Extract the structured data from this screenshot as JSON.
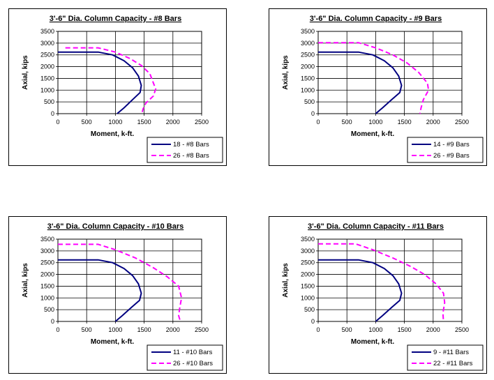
{
  "chart_data": [
    {
      "type": "line",
      "title": "3'-6\" Dia. Column Capacity - #8 Bars",
      "xlabel": "Moment, k-ft.",
      "ylabel": "Axial, kips",
      "xlim": [
        0,
        2500
      ],
      "ylim": [
        0,
        3500
      ],
      "x_ticks": [
        "0",
        "500",
        "1000",
        "1500",
        "2000",
        "2500"
      ],
      "y_ticks": [
        "0",
        "500",
        "1000",
        "1500",
        "2000",
        "2500",
        "3000",
        "3500"
      ],
      "grid": true,
      "legend": "bottom-right",
      "series": [
        {
          "name": "18 - #8 Bars",
          "color": "#000080",
          "dash": "solid",
          "x": [
            0,
            700,
            950,
            1150,
            1300,
            1400,
            1450,
            1430,
            1300,
            1150,
            1030
          ],
          "y": [
            2620,
            2620,
            2500,
            2250,
            1950,
            1600,
            1200,
            900,
            600,
            250,
            0
          ]
        },
        {
          "name": "26 - #8 Bars",
          "color": "#FF00FF",
          "dash": "dashed",
          "x": [
            130,
            700,
            1000,
            1250,
            1450,
            1600,
            1700,
            1660,
            1530,
            1480,
            1460
          ],
          "y": [
            2800,
            2800,
            2620,
            2350,
            2050,
            1700,
            1050,
            750,
            450,
            200,
            0
          ]
        }
      ]
    },
    {
      "type": "line",
      "title": "3'-6\" Dia. Column Capacity - #9 Bars",
      "xlabel": "Moment, k-ft.",
      "ylabel": "Axial, kips",
      "xlim": [
        0,
        2500
      ],
      "ylim": [
        0,
        3500
      ],
      "x_ticks": [
        "0",
        "500",
        "1000",
        "1500",
        "2000",
        "2500"
      ],
      "y_ticks": [
        "0",
        "500",
        "1000",
        "1500",
        "2000",
        "2500",
        "3000",
        "3500"
      ],
      "grid": true,
      "legend": "bottom-right",
      "series": [
        {
          "name": "14 - #9 Bars",
          "color": "#000080",
          "dash": "solid",
          "x": [
            0,
            700,
            950,
            1150,
            1300,
            1400,
            1450,
            1420,
            1280,
            1120,
            1000
          ],
          "y": [
            2620,
            2620,
            2500,
            2250,
            1950,
            1600,
            1200,
            900,
            600,
            250,
            0
          ]
        },
        {
          "name": "26 - #9 Bars",
          "color": "#FF00FF",
          "dash": "dashed",
          "x": [
            0,
            700,
            1000,
            1300,
            1550,
            1750,
            1900,
            1920,
            1830,
            1790,
            1770
          ],
          "y": [
            3020,
            3020,
            2800,
            2500,
            2150,
            1750,
            1300,
            1000,
            600,
            250,
            0
          ]
        }
      ]
    },
    {
      "type": "line",
      "title": "3'-6\" Dia. Column Capacity - #10 Bars",
      "xlabel": "Moment, k-ft.",
      "ylabel": "Axial, kips",
      "xlim": [
        0,
        2500
      ],
      "ylim": [
        0,
        3500
      ],
      "x_ticks": [
        "0",
        "500",
        "1000",
        "1500",
        "2000",
        "2500"
      ],
      "y_ticks": [
        "0",
        "500",
        "1000",
        "1500",
        "2000",
        "2500",
        "3000",
        "3500"
      ],
      "grid": true,
      "legend": "bottom-right",
      "series": [
        {
          "name": "11 - #10 Bars",
          "color": "#000080",
          "dash": "solid",
          "x": [
            0,
            700,
            950,
            1150,
            1300,
            1400,
            1450,
            1420,
            1280,
            1120,
            1000
          ],
          "y": [
            2620,
            2620,
            2500,
            2250,
            1950,
            1600,
            1200,
            900,
            600,
            250,
            0
          ]
        },
        {
          "name": "26 - #10 Bars",
          "color": "#FF00FF",
          "dash": "dashed",
          "x": [
            0,
            700,
            1000,
            1350,
            1650,
            1900,
            2100,
            2150,
            2120,
            2100,
            2130
          ],
          "y": [
            3280,
            3280,
            3050,
            2700,
            2300,
            1900,
            1500,
            1000,
            600,
            250,
            0
          ]
        }
      ]
    },
    {
      "type": "line",
      "title": "3'-6\" Dia. Column Capacity - #11 Bars",
      "xlabel": "Moment, k-ft.",
      "ylabel": "Axial, kips",
      "xlim": [
        0,
        2500
      ],
      "ylim": [
        0,
        3500
      ],
      "x_ticks": [
        "0",
        "500",
        "1000",
        "1500",
        "2000",
        "2500"
      ],
      "y_ticks": [
        "0",
        "500",
        "1000",
        "1500",
        "2000",
        "2500",
        "3000",
        "3500"
      ],
      "grid": true,
      "legend": "bottom-right",
      "series": [
        {
          "name": "9 - #11 Bars",
          "color": "#000080",
          "dash": "solid",
          "x": [
            0,
            700,
            950,
            1150,
            1300,
            1400,
            1450,
            1420,
            1280,
            1120,
            1000
          ],
          "y": [
            2620,
            2620,
            2500,
            2250,
            1950,
            1600,
            1200,
            900,
            600,
            250,
            0
          ]
        },
        {
          "name": "22 - #11 Bars",
          "color": "#FF00FF",
          "dash": "dashed",
          "x": [
            0,
            650,
            950,
            1300,
            1600,
            1850,
            2050,
            2180,
            2200,
            2170,
            2180
          ],
          "y": [
            3300,
            3300,
            3050,
            2700,
            2350,
            2000,
            1600,
            1200,
            800,
            350,
            0
          ]
        }
      ]
    }
  ]
}
